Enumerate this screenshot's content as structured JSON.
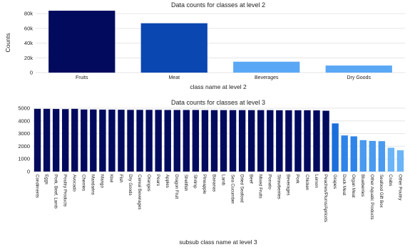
{
  "chart_data": [
    {
      "type": "bar",
      "title": "Data counts for classes at level 2",
      "xlabel": "class name at level 2",
      "ylabel": "Counts",
      "ylim": [
        0,
        85000
      ],
      "yticks": [
        0,
        20000,
        40000,
        60000,
        80000
      ],
      "ytick_labels": [
        "0",
        "20k",
        "40k",
        "60k",
        "80k"
      ],
      "grid": true,
      "categories": [
        "Fruits",
        "Meat",
        "Beverages",
        "Dry Goods"
      ],
      "values": [
        84000,
        67000,
        14800,
        9600
      ],
      "colors": [
        "#020a5e",
        "#0a47b0",
        "#5aa8f5",
        "#5aa8f5"
      ]
    },
    {
      "type": "bar",
      "title": "Data counts for classes at level 3",
      "xlabel": "subsub class name at level 3",
      "ylim": [
        0,
        5000
      ],
      "yticks": [
        0,
        1000,
        2000,
        3000,
        4000,
        5000
      ],
      "ytick_labels": [
        "0",
        "1000",
        "2000",
        "3000",
        "4000",
        "5000"
      ],
      "grid": true,
      "categories": [
        "Condiments",
        "Eggs",
        "Pork, Beef, Lamb",
        "Poultry Products",
        "Avocado",
        "Cherries",
        "Mandarins",
        "Mango",
        "Kiwi",
        "Fish",
        "Dry Goods",
        "Cereal Beverages",
        "Oranges",
        "Pears",
        "Apples",
        "Dragon Fruit",
        "Shellfish",
        "Shrimp",
        "Pineapple",
        "Bananas",
        "Lamb",
        "Sea Cucumber",
        "Dried Seafood",
        "Beef",
        "Mixed Fruits",
        "Pomelo",
        "Strawberries",
        "Beverages",
        "Pork",
        "Chicken",
        "Lemon",
        "Peaches/Plums/Apricots",
        "Grapes",
        "Duck Meat",
        "Organ Meat",
        "Blueberries",
        "Other Aquatic Products",
        "Seafood Gift Box",
        "Crabs",
        "Other Poultry"
      ],
      "values": [
        4950,
        4950,
        4940,
        4930,
        4950,
        4900,
        4900,
        4890,
        4890,
        4880,
        4870,
        4870,
        4870,
        4870,
        4860,
        4860,
        4860,
        4860,
        4850,
        4850,
        4850,
        4850,
        4850,
        4850,
        4850,
        4850,
        4840,
        4840,
        4840,
        4840,
        4830,
        4800,
        3800,
        2850,
        2780,
        2480,
        2420,
        2400,
        1880,
        1680
      ],
      "colors": [
        "#020a5e",
        "#020a5e",
        "#020a5e",
        "#020a5e",
        "#020a5e",
        "#020a5e",
        "#020a5e",
        "#020a5e",
        "#020a5e",
        "#020a5e",
        "#020a5e",
        "#020a5e",
        "#020a5e",
        "#020a5e",
        "#020a5e",
        "#020a5e",
        "#020a5e",
        "#020a5e",
        "#020a5e",
        "#020a5e",
        "#020a5e",
        "#020a5e",
        "#020a5e",
        "#020a5e",
        "#020a5e",
        "#020a5e",
        "#020a5e",
        "#020a5e",
        "#020a5e",
        "#020a5e",
        "#020a5e",
        "#020a5e",
        "#1a6fdb",
        "#2e84e8",
        "#2e84e8",
        "#4a9af0",
        "#4a9af0",
        "#4a9af0",
        "#6ab4f7",
        "#6ab4f7"
      ]
    }
  ]
}
